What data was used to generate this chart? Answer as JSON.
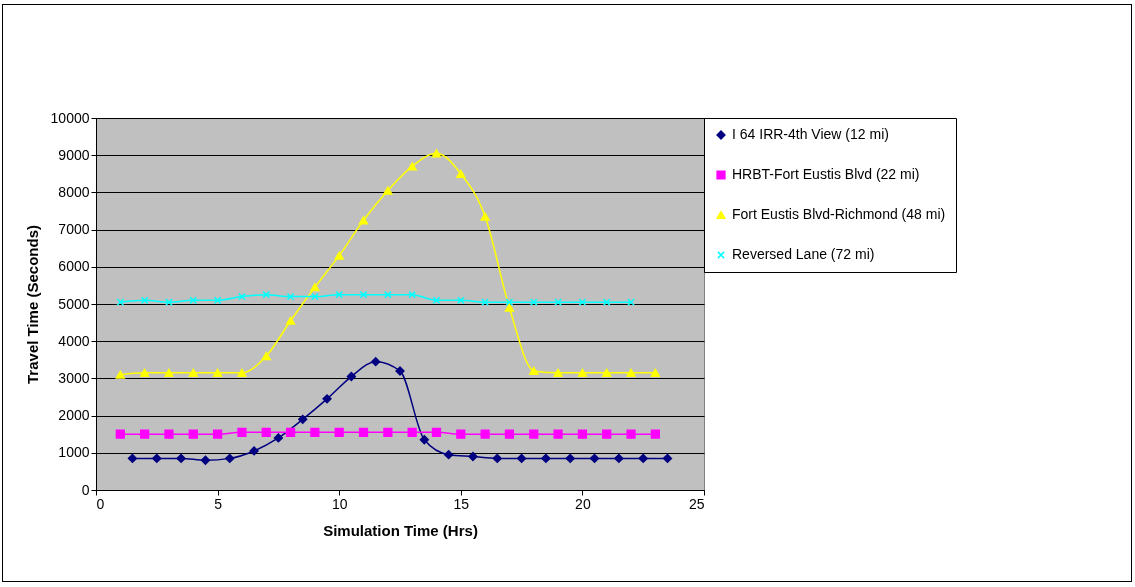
{
  "chart_data": {
    "type": "line",
    "xlabel": "Simulation Time (Hrs)",
    "ylabel": "Travel Time (Seconds)",
    "xlim": [
      0,
      25
    ],
    "xticks": [
      0,
      5,
      10,
      15,
      20,
      25
    ],
    "ylim": [
      0,
      10000
    ],
    "yticks": [
      0,
      1000,
      2000,
      3000,
      4000,
      5000,
      6000,
      7000,
      8000,
      9000,
      10000
    ],
    "grid": "y",
    "legend": "right",
    "series": [
      {
        "name": "I 64 IRR-4th View (12 mi)",
        "color": "#000080",
        "marker": "diamond",
        "x": [
          1.5,
          2.5,
          3.5,
          4.5,
          5.5,
          6.5,
          7.5,
          8.5,
          9.5,
          10.5,
          11.5,
          12.5,
          13.5,
          14.5,
          15.5,
          16.5,
          17.5,
          18.5,
          19.5,
          20.5,
          21.5,
          22.5,
          23.5
        ],
        "values": [
          850,
          850,
          850,
          800,
          850,
          1050,
          1400,
          1900,
          2450,
          3050,
          3450,
          3200,
          1350,
          950,
          900,
          850,
          850,
          850,
          850,
          850,
          850,
          850,
          850
        ]
      },
      {
        "name": "HRBT-Fort Eustis Blvd (22 mi)",
        "color": "#ff00ff",
        "marker": "square",
        "x": [
          1,
          2,
          3,
          4,
          5,
          6,
          7,
          8,
          9,
          10,
          11,
          12,
          13,
          14,
          15,
          16,
          17,
          18,
          19,
          20,
          21,
          22,
          23
        ],
        "values": [
          1500,
          1500,
          1500,
          1500,
          1500,
          1550,
          1550,
          1550,
          1550,
          1550,
          1550,
          1550,
          1550,
          1550,
          1500,
          1500,
          1500,
          1500,
          1500,
          1500,
          1500,
          1500,
          1500
        ]
      },
      {
        "name": "Fort Eustis Blvd-Richmond (48 mi)",
        "color": "#ffff00",
        "marker": "triangle",
        "x": [
          1,
          2,
          3,
          4,
          5,
          6,
          7,
          8,
          9,
          10,
          11,
          12,
          13,
          14,
          15,
          16,
          17,
          18,
          19,
          20,
          21,
          22,
          23
        ],
        "values": [
          3100,
          3150,
          3150,
          3150,
          3150,
          3150,
          3600,
          4550,
          5450,
          6300,
          7250,
          8050,
          8700,
          9050,
          8500,
          7350,
          4900,
          3200,
          3150,
          3150,
          3150,
          3150,
          3150
        ]
      },
      {
        "name": "Reversed Lane (72 mi)",
        "color": "#00ffff",
        "marker": "cross",
        "x": [
          1,
          2,
          3,
          4,
          5,
          6,
          7,
          8,
          9,
          10,
          11,
          12,
          13,
          14,
          15,
          16,
          17,
          18,
          19,
          20,
          21,
          22
        ],
        "values": [
          5050,
          5100,
          5050,
          5100,
          5100,
          5200,
          5250,
          5200,
          5200,
          5250,
          5250,
          5250,
          5250,
          5100,
          5100,
          5050,
          5050,
          5050,
          5050,
          5050,
          5050,
          5050
        ]
      }
    ]
  }
}
